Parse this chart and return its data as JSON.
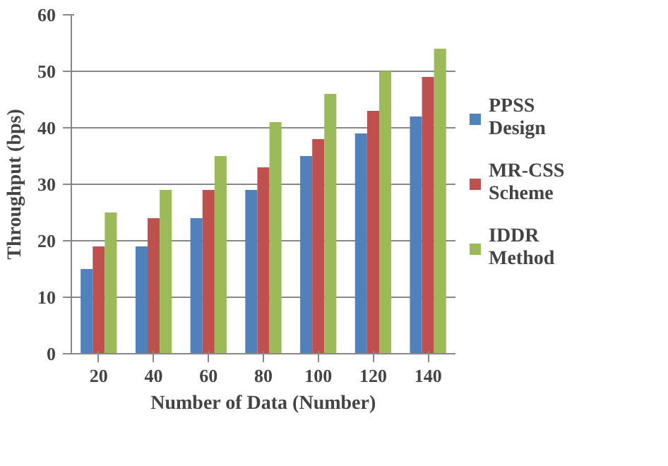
{
  "chart_data": {
    "type": "bar",
    "xlabel": "Number of Data (Number)",
    "ylabel": "Throughput (bps)",
    "categories": [
      "20",
      "40",
      "60",
      "80",
      "100",
      "120",
      "140"
    ],
    "series": [
      {
        "name": "PPSS Design",
        "color": "#4f81bd",
        "values": [
          15,
          19,
          24,
          29,
          35,
          39,
          42
        ]
      },
      {
        "name": "MR-CSS Scheme",
        "color": "#c0504d",
        "values": [
          19,
          24,
          29,
          33,
          38,
          43,
          49
        ]
      },
      {
        "name": "IDDR Method",
        "color": "#9bbb59",
        "values": [
          25,
          29,
          35,
          41,
          46,
          50,
          54
        ]
      }
    ],
    "ylim": [
      0,
      60
    ],
    "yticks": [
      0,
      10,
      20,
      30,
      40,
      50,
      60
    ],
    "grid": "y",
    "legend": "right"
  }
}
